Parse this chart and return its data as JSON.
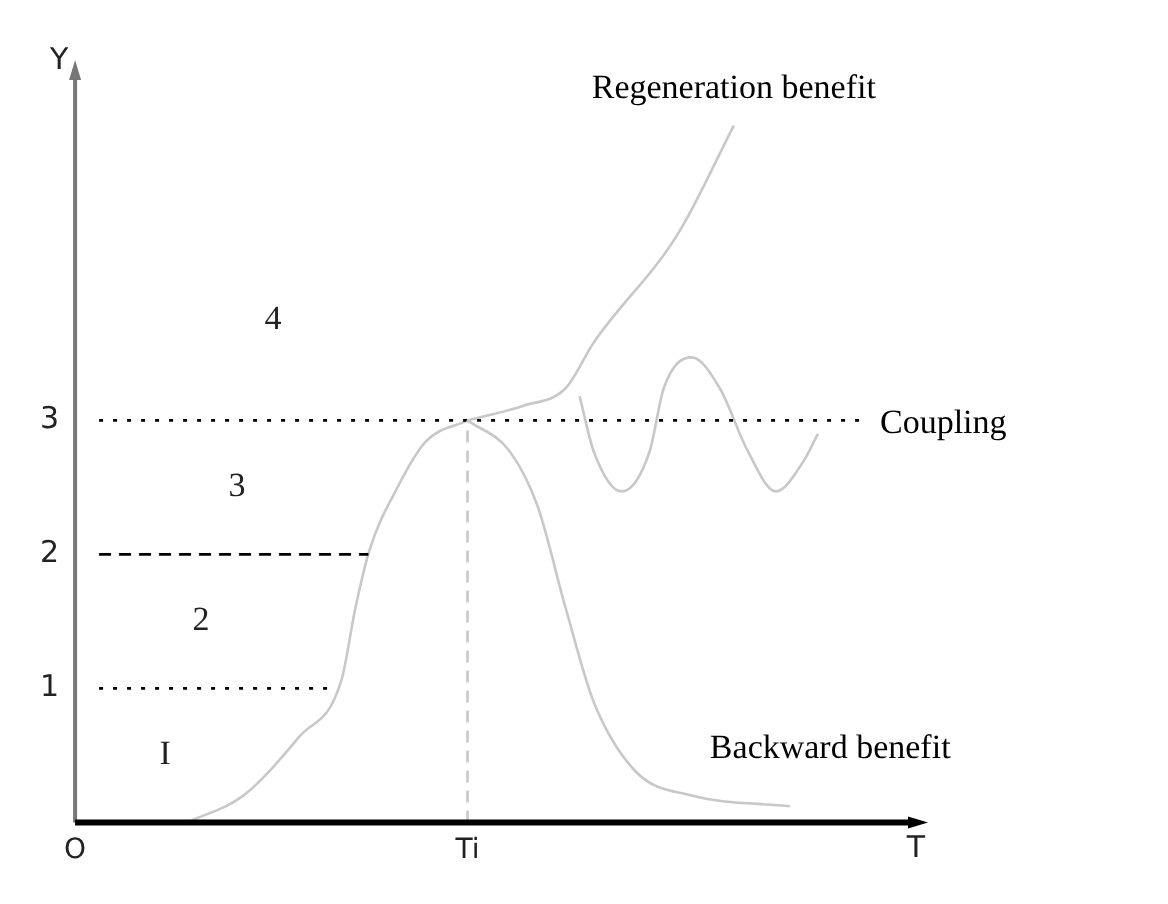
{
  "chart_data": {
    "type": "line",
    "xlabel": "T",
    "ylabel": "Y",
    "categories": [
      "O",
      null,
      null,
      null,
      null,
      null,
      null,
      null,
      null,
      null,
      null,
      null,
      null,
      null,
      null,
      null,
      null,
      null,
      null,
      null,
      null,
      null,
      null,
      null,
      null,
      null,
      null,
      null,
      "Ti",
      null,
      null,
      null,
      null,
      null,
      null,
      null,
      null,
      null,
      null,
      null,
      null,
      null,
      null,
      null,
      null,
      null,
      null,
      null,
      null,
      null,
      null,
      null,
      null,
      null,
      null,
      null,
      null,
      null,
      null,
      null,
      null
    ],
    "ylim": [
      0,
      5.6
    ],
    "yticks": [
      1,
      2,
      3
    ],
    "grid": false,
    "legend": false,
    "marker": "none",
    "line_style": "solid",
    "series": [
      {
        "color": "#c8c8c8",
        "values": [
          null,
          null,
          null,
          null,
          null,
          null,
          null,
          null,
          0,
          null,
          null,
          null,
          0.2,
          null,
          null,
          null,
          0.64,
          null,
          null,
          1.06,
          1.6,
          2.03,
          null,
          2.5,
          null,
          2.84,
          null,
          null,
          3,
          null,
          null,
          null,
          null,
          null,
          null,
          null,
          null,
          null,
          null,
          null,
          null,
          null,
          null,
          null,
          null,
          null,
          null,
          null,
          null,
          null,
          null,
          null,
          null,
          null,
          null,
          null,
          null,
          null,
          null,
          null,
          null
        ]
      },
      {
        "name": "Backward benefit",
        "color": "#c8c8c8",
        "values": [
          null,
          null,
          null,
          null,
          null,
          null,
          null,
          null,
          null,
          null,
          null,
          null,
          null,
          null,
          null,
          null,
          null,
          null,
          null,
          null,
          null,
          null,
          null,
          null,
          null,
          null,
          null,
          null,
          3,
          null,
          null,
          2.77,
          null,
          2.36,
          null,
          1.6,
          null,
          0.9,
          null,
          null,
          0.38,
          null,
          null,
          null,
          0.2,
          null,
          null,
          null,
          null,
          null,
          null,
          0.12,
          null,
          null,
          null,
          null,
          null,
          null,
          null,
          null,
          null
        ]
      },
      {
        "name": "Regeneration benefit",
        "color": "#c8c8c8",
        "values": [
          null,
          null,
          null,
          null,
          null,
          null,
          null,
          null,
          null,
          null,
          null,
          null,
          null,
          null,
          null,
          null,
          null,
          null,
          null,
          null,
          null,
          null,
          null,
          null,
          null,
          null,
          null,
          null,
          3,
          null,
          null,
          null,
          3.11,
          null,
          null,
          3.24,
          null,
          3.58,
          null,
          null,
          null,
          null,
          null,
          4.39,
          null,
          null,
          null,
          5.2,
          null,
          null,
          null,
          null,
          null,
          null,
          null,
          null,
          null,
          null,
          null,
          null,
          null
        ]
      },
      {
        "name": "Coupling",
        "color": "#c8c8c8",
        "values": [
          null,
          null,
          null,
          null,
          null,
          null,
          null,
          null,
          null,
          null,
          null,
          null,
          null,
          null,
          null,
          null,
          null,
          null,
          null,
          null,
          null,
          null,
          null,
          null,
          null,
          null,
          null,
          null,
          null,
          null,
          null,
          null,
          null,
          null,
          null,
          null,
          3.18,
          2.77,
          null,
          2.47,
          null,
          2.77,
          3.24,
          null,
          3.47,
          null,
          3.24,
          null,
          2.77,
          null,
          2.47,
          null,
          2.7,
          2.9,
          null,
          null,
          null,
          null,
          null,
          null,
          null
        ]
      }
    ],
    "ref_lines": [
      {
        "axis": "y",
        "value": 1,
        "color": "#000000",
        "line_style": "dotted"
      },
      {
        "axis": "y",
        "value": 2,
        "color": "#000000",
        "line_style": "dashed"
      },
      {
        "axis": "y",
        "value": 3,
        "color": "#000000",
        "line_style": "dotted"
      },
      {
        "axis": "x",
        "value": "Ti",
        "color": "#c8c8c8",
        "line_style": "dashed"
      }
    ],
    "annotations": [
      "I",
      "2",
      "3",
      "4"
    ]
  }
}
